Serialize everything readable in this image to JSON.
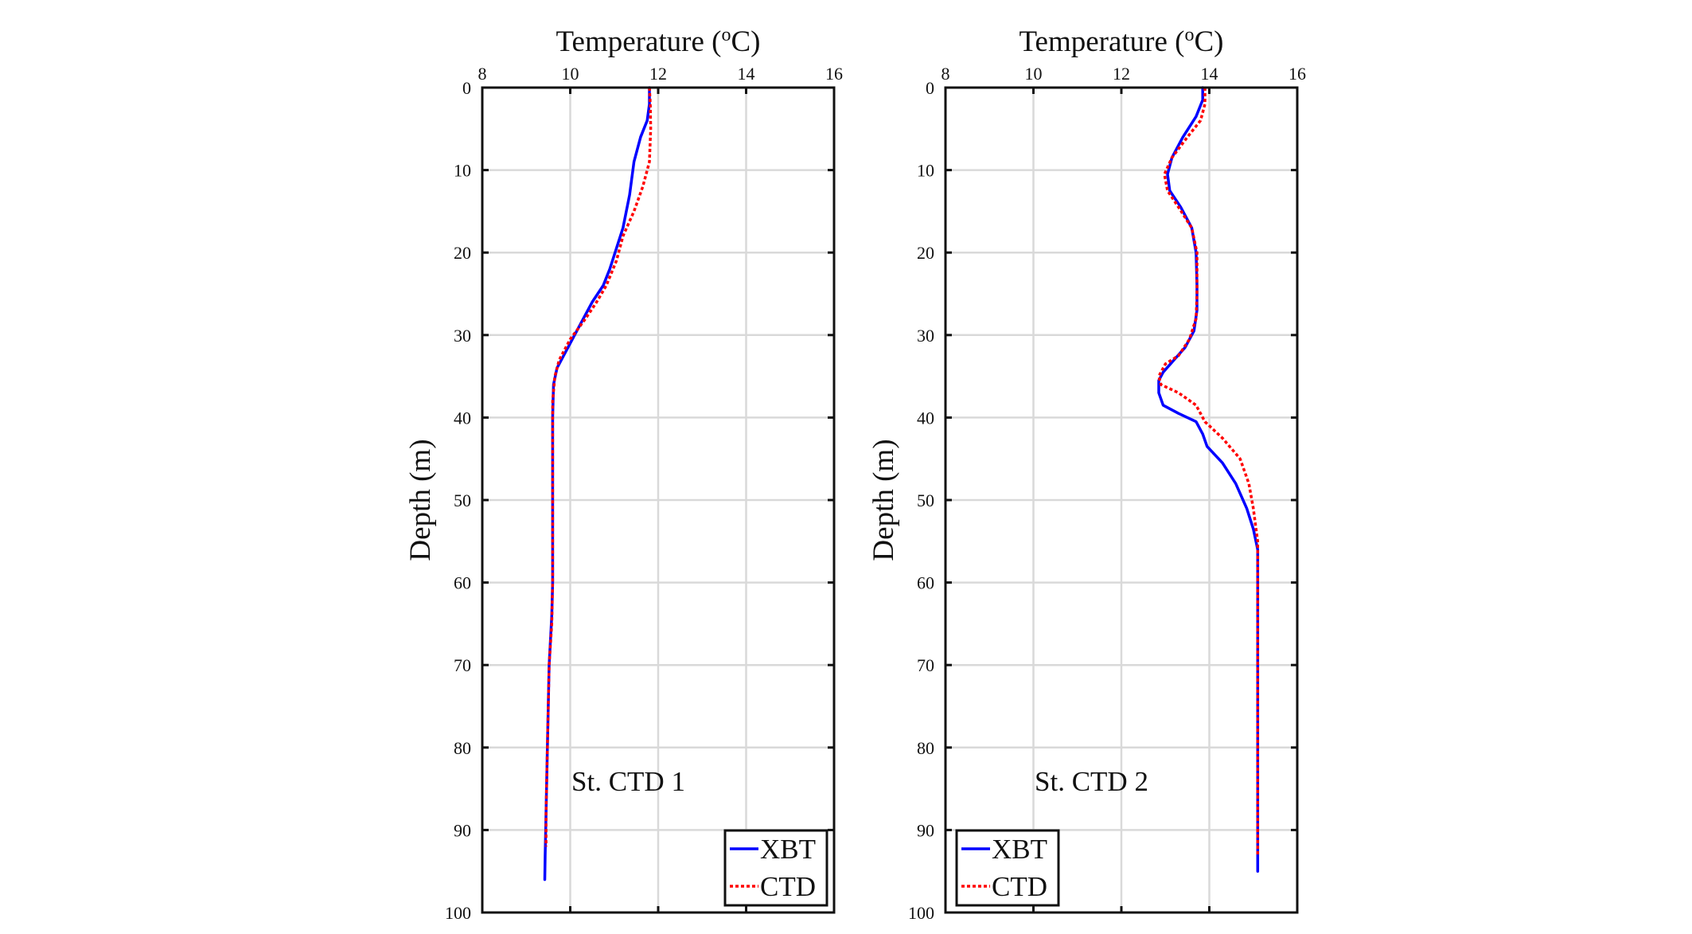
{
  "chart_data": [
    {
      "type": "line",
      "title": "",
      "xlabel": {
        "prefix": "Temperature (",
        "sup": "o",
        "suffix": "C)"
      },
      "ylabel": "Depth (m)",
      "xlim": [
        8,
        16
      ],
      "ylim": [
        0,
        100
      ],
      "y_reversed": true,
      "x_axis_position": "top",
      "grid": true,
      "xticks": [
        8,
        10,
        12,
        14,
        16
      ],
      "xtick_labels": [
        "8",
        "10",
        "12",
        "14",
        "16"
      ],
      "yticks": [
        0,
        10,
        20,
        30,
        40,
        50,
        60,
        70,
        80,
        90,
        100
      ],
      "ytick_labels": [
        "0",
        "10",
        "20",
        "30",
        "40",
        "50",
        "60",
        "70",
        "80",
        "90",
        "100"
      ],
      "annotation": "St. CTD 1",
      "legend": {
        "placement": "bottom-right",
        "entries": [
          "XBT",
          "CTD"
        ]
      },
      "series": [
        {
          "name": "XBT",
          "color": "#0000ff",
          "style": "solid",
          "x": [
            11.8,
            11.8,
            11.75,
            11.6,
            11.45,
            11.35,
            11.2,
            11.05,
            10.9,
            10.75,
            10.5,
            10.2,
            9.95,
            9.7,
            9.62,
            9.6,
            9.6,
            9.6,
            9.58,
            9.52,
            9.48,
            9.45,
            9.43,
            9.42
          ],
          "y": [
            0,
            2,
            4,
            6,
            9,
            13,
            17,
            19.5,
            22,
            24,
            26,
            29,
            31.5,
            34,
            36,
            40,
            50,
            60,
            64,
            70,
            80,
            88,
            93,
            96
          ]
        },
        {
          "name": "CTD",
          "color": "#ff0000",
          "style": "dotted",
          "x": [
            11.8,
            11.82,
            11.83,
            11.8,
            11.65,
            11.45,
            11.2,
            11.05,
            10.82,
            10.6,
            10.35,
            10.0,
            9.75,
            9.65,
            9.6,
            9.6,
            9.6,
            9.58,
            9.52,
            9.48,
            9.45,
            9.45
          ],
          "y": [
            0,
            2,
            5,
            9,
            12,
            15,
            18,
            21,
            24,
            26,
            28,
            30.5,
            33,
            35,
            38,
            50,
            60,
            65,
            70,
            80,
            88,
            92
          ]
        }
      ]
    },
    {
      "type": "line",
      "title": "",
      "xlabel": {
        "prefix": "Temperature (",
        "sup": "o",
        "suffix": "C)"
      },
      "ylabel": "Depth (m)",
      "xlim": [
        8,
        16
      ],
      "ylim": [
        0,
        100
      ],
      "y_reversed": true,
      "x_axis_position": "top",
      "grid": true,
      "xticks": [
        8,
        10,
        12,
        14,
        16
      ],
      "xtick_labels": [
        "8",
        "10",
        "12",
        "14",
        "16"
      ],
      "yticks": [
        0,
        10,
        20,
        30,
        40,
        50,
        60,
        70,
        80,
        90,
        100
      ],
      "ytick_labels": [
        "0",
        "10",
        "20",
        "30",
        "40",
        "50",
        "60",
        "70",
        "80",
        "90",
        "100"
      ],
      "annotation": "St. CTD 2",
      "legend": {
        "placement": "bottom-right",
        "entries": [
          "XBT",
          "CTD"
        ]
      },
      "series": [
        {
          "name": "XBT",
          "color": "#0000ff",
          "style": "solid",
          "x": [
            13.85,
            13.85,
            13.7,
            13.4,
            13.15,
            13.05,
            13.1,
            13.35,
            13.6,
            13.7,
            13.72,
            13.72,
            13.65,
            13.45,
            13.2,
            12.95,
            12.85,
            12.85,
            12.95,
            13.3,
            13.7,
            13.85,
            13.95,
            14.3,
            14.6,
            14.85,
            15.0,
            15.1,
            15.1,
            15.1,
            15.1
          ],
          "y": [
            0,
            1.5,
            3.5,
            6,
            8.5,
            10.5,
            12.5,
            14.5,
            17,
            20,
            24,
            27,
            29.5,
            31.5,
            33,
            34.5,
            35.5,
            37,
            38.5,
            39.5,
            40.5,
            42,
            43.5,
            45.5,
            48,
            51,
            53.5,
            56,
            60,
            80,
            95
          ]
        },
        {
          "name": "CTD",
          "color": "#ff0000",
          "style": "dotted",
          "x": [
            13.9,
            13.9,
            13.8,
            13.5,
            13.15,
            12.98,
            13.05,
            13.3,
            13.6,
            13.72,
            13.72,
            13.7,
            13.55,
            13.3,
            13.0,
            12.85,
            12.9,
            13.3,
            13.7,
            13.9,
            14.3,
            14.7,
            14.9,
            15.0,
            15.05,
            15.1,
            15.1,
            15.1,
            15.1
          ],
          "y": [
            0,
            2,
            4,
            6,
            8.5,
            10.5,
            12.5,
            14.5,
            17,
            20,
            25,
            28,
            30.5,
            32.5,
            33.5,
            35,
            36,
            37,
            38.5,
            40.5,
            42.5,
            45,
            48,
            51,
            53,
            55,
            60,
            80,
            93
          ]
        }
      ]
    }
  ]
}
